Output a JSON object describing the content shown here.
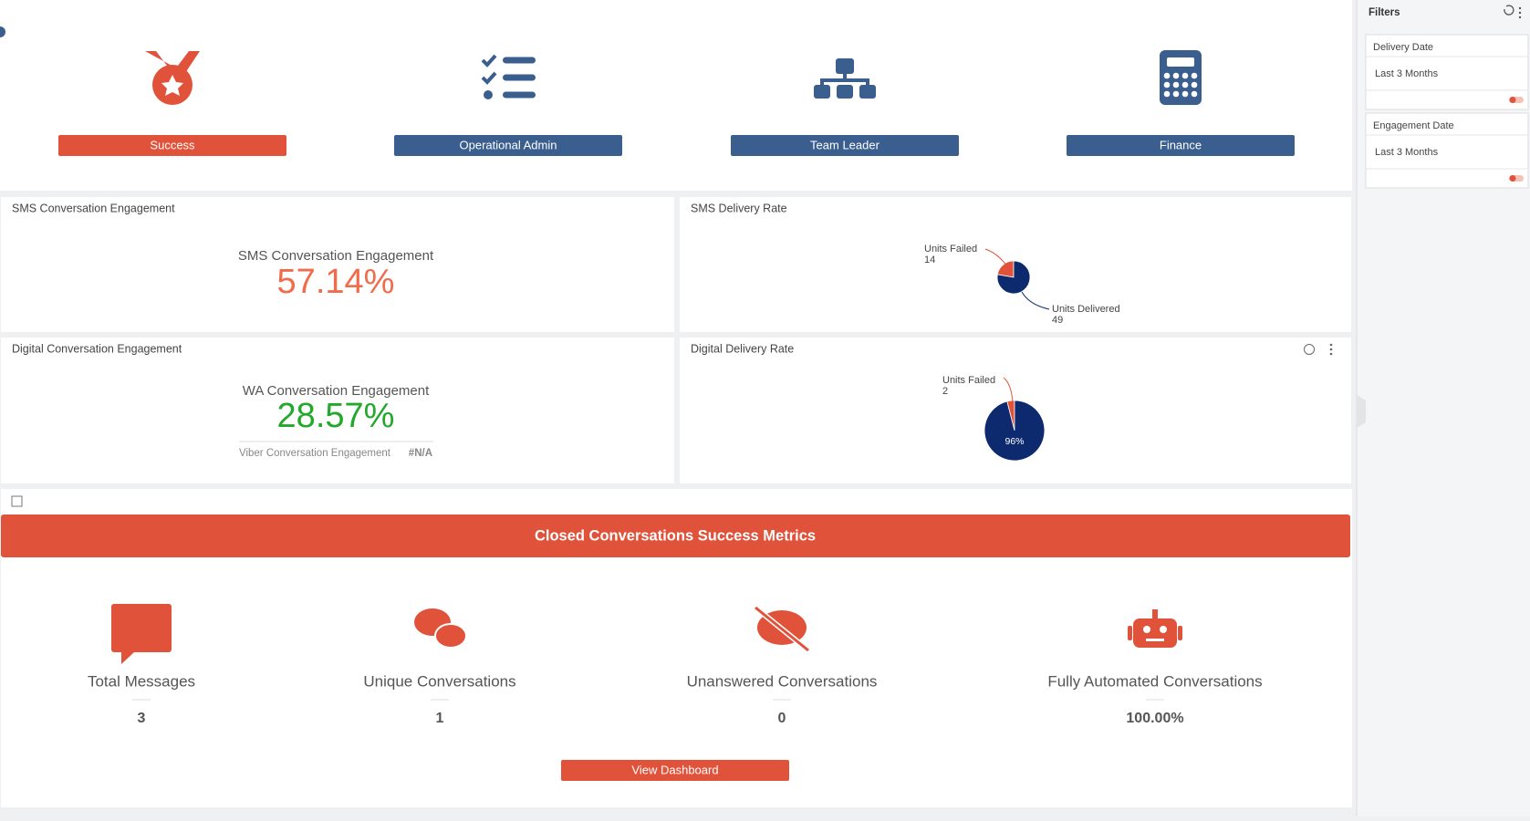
{
  "nav": [
    "Success",
    "Operational Admin",
    "Team Leader",
    "Finance"
  ],
  "sms_engagement": {
    "title": "SMS Conversation Engagement",
    "label": "SMS Conversation Engagement",
    "value": "57.14%"
  },
  "digital_engagement": {
    "title": "Digital Conversation Engagement",
    "label": "WA Conversation Engagement",
    "value": "28.57%",
    "sub_label": "Viber Conversation Engagement",
    "sub_value": "#N/A"
  },
  "chart_data": [
    {
      "type": "pie",
      "title": "SMS Delivery Rate",
      "categories": [
        "Units Failed",
        "Units Delivered"
      ],
      "values": [
        14,
        49
      ],
      "colors": [
        "#e0533a",
        "#0d2a6e"
      ]
    },
    {
      "type": "pie",
      "title": "Digital Delivery Rate",
      "categories": [
        "Units Failed",
        null
      ],
      "values": [
        2,
        48
      ],
      "percent_labels": [
        null,
        "96%"
      ],
      "colors": [
        "#e0533a",
        "#0d2a6e"
      ]
    }
  ],
  "metrics": {
    "title": "Closed Conversations Success Metrics",
    "items": [
      {
        "label": "Total Messages",
        "value": 3
      },
      {
        "label": "Unique Conversations",
        "value": 1
      },
      {
        "label": "Unanswered Conversations",
        "value": 0
      },
      {
        "label": "Fully Automated Conversations",
        "value": "100.00%"
      }
    ],
    "button": "View Dashboard"
  },
  "filters": {
    "title": "Filters",
    "items": [
      {
        "name": "Delivery Date",
        "value": "Last 3 Months"
      },
      {
        "name": "Engagement Date",
        "value": "Last 3 Months"
      }
    ]
  }
}
